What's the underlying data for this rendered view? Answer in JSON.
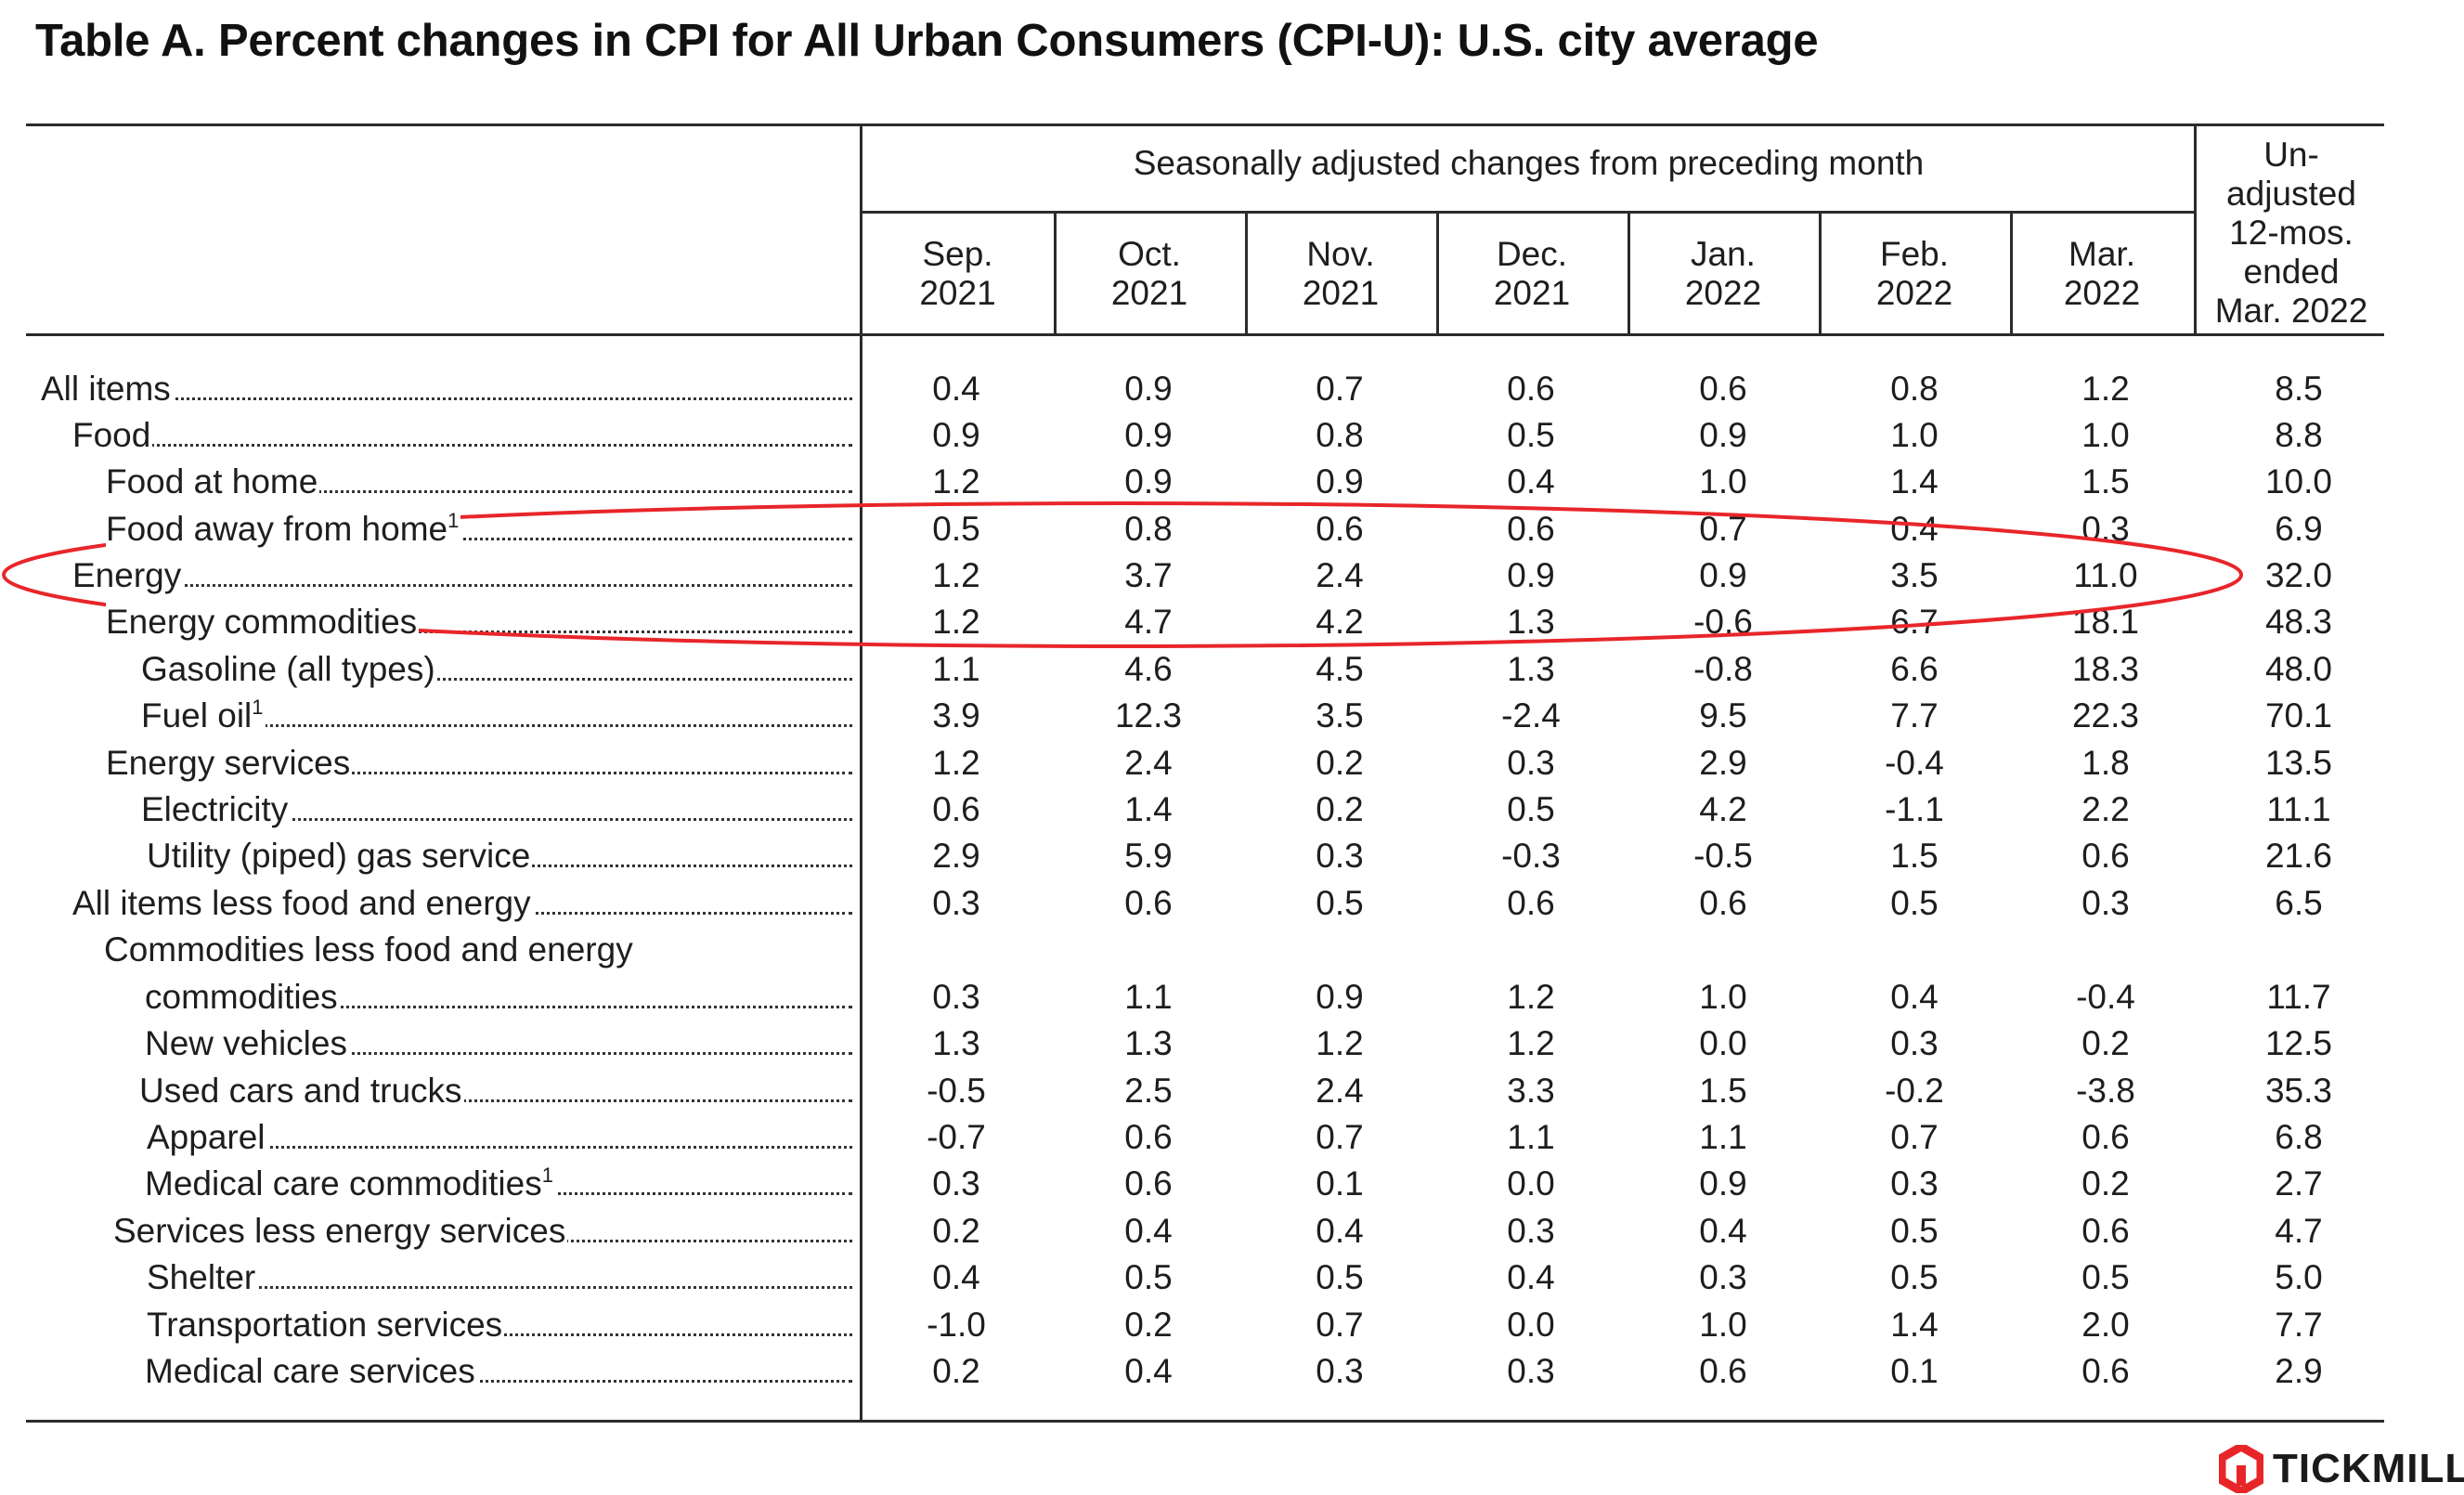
{
  "title": "Table A. Percent changes in CPI for All Urban Consumers (CPI-U): U.S. city average",
  "header": {
    "span_label": "Seasonally adjusted changes from preceding month",
    "months": [
      {
        "line1": "Sep.",
        "line2": "2021"
      },
      {
        "line1": "Oct.",
        "line2": "2021"
      },
      {
        "line1": "Nov.",
        "line2": "2021"
      },
      {
        "line1": "Dec.",
        "line2": "2021"
      },
      {
        "line1": "Jan.",
        "line2": "2022"
      },
      {
        "line1": "Feb.",
        "line2": "2022"
      },
      {
        "line1": "Mar.",
        "line2": "2022"
      }
    ],
    "unadjusted": [
      "Un-",
      "adjusted",
      "12-mos.",
      "ended",
      "Mar. 2022"
    ]
  },
  "rows": [
    {
      "label": "All items",
      "sup": "",
      "values": [
        "0.4",
        "0.9",
        "0.7",
        "0.6",
        "0.6",
        "0.8",
        "1.2",
        "8.5"
      ]
    },
    {
      "label": "Food",
      "sup": "",
      "values": [
        "0.9",
        "0.9",
        "0.8",
        "0.5",
        "0.9",
        "1.0",
        "1.0",
        "8.8"
      ]
    },
    {
      "label": "Food at home",
      "sup": "",
      "values": [
        "1.2",
        "0.9",
        "0.9",
        "0.4",
        "1.0",
        "1.4",
        "1.5",
        "10.0"
      ]
    },
    {
      "label": "Food away from home",
      "sup": "1",
      "values": [
        "0.5",
        "0.8",
        "0.6",
        "0.6",
        "0.7",
        "0.4",
        "0.3",
        "6.9"
      ]
    },
    {
      "label": "Energy",
      "sup": "",
      "values": [
        "1.2",
        "3.7",
        "2.4",
        "0.9",
        "0.9",
        "3.5",
        "11.0",
        "32.0"
      ]
    },
    {
      "label": "Energy commodities",
      "sup": "",
      "values": [
        "1.2",
        "4.7",
        "4.2",
        "1.3",
        "-0.6",
        "6.7",
        "18.1",
        "48.3"
      ]
    },
    {
      "label": "Gasoline (all types)",
      "sup": "",
      "values": [
        "1.1",
        "4.6",
        "4.5",
        "1.3",
        "-0.8",
        "6.6",
        "18.3",
        "48.0"
      ]
    },
    {
      "label": "Fuel oil",
      "sup": "1",
      "values": [
        "3.9",
        "12.3",
        "3.5",
        "-2.4",
        "9.5",
        "7.7",
        "22.3",
        "70.1"
      ]
    },
    {
      "label": "Energy services",
      "sup": "",
      "values": [
        "1.2",
        "2.4",
        "0.2",
        "0.3",
        "2.9",
        "-0.4",
        "1.8",
        "13.5"
      ]
    },
    {
      "label": "Electricity",
      "sup": "",
      "values": [
        "0.6",
        "1.4",
        "0.2",
        "0.5",
        "4.2",
        "-1.1",
        "2.2",
        "11.1"
      ]
    },
    {
      "label": "Utility (piped) gas service",
      "sup": "",
      "values": [
        "2.9",
        "5.9",
        "0.3",
        "-0.3",
        "-0.5",
        "1.5",
        "0.6",
        "21.6"
      ]
    },
    {
      "label": "All items less food and energy",
      "sup": "",
      "values": [
        "0.3",
        "0.6",
        "0.5",
        "0.6",
        "0.6",
        "0.5",
        "0.3",
        "6.5"
      ]
    },
    {
      "label": "commodities",
      "sup": "",
      "lead": "Commodities less food and energy",
      "values": [
        "0.3",
        "1.1",
        "0.9",
        "1.2",
        "1.0",
        "0.4",
        "-0.4",
        "11.7"
      ]
    },
    {
      "label": "New vehicles",
      "sup": "",
      "values": [
        "1.3",
        "1.3",
        "1.2",
        "1.2",
        "0.0",
        "0.3",
        "0.2",
        "12.5"
      ]
    },
    {
      "label": "Used cars and trucks",
      "sup": "",
      "values": [
        "-0.5",
        "2.5",
        "2.4",
        "3.3",
        "1.5",
        "-0.2",
        "-3.8",
        "35.3"
      ]
    },
    {
      "label": "Apparel",
      "sup": "",
      "values": [
        "-0.7",
        "0.6",
        "0.7",
        "1.1",
        "1.1",
        "0.7",
        "0.6",
        "6.8"
      ]
    },
    {
      "label": "Medical care commodities",
      "sup": "1",
      "values": [
        "0.3",
        "0.6",
        "0.1",
        "0.0",
        "0.9",
        "0.3",
        "0.2",
        "2.7"
      ]
    },
    {
      "label": "Services less energy services",
      "sup": "",
      "values": [
        "0.2",
        "0.4",
        "0.4",
        "0.3",
        "0.4",
        "0.5",
        "0.6",
        "4.7"
      ]
    },
    {
      "label": "Shelter",
      "sup": "",
      "values": [
        "0.4",
        "0.5",
        "0.5",
        "0.4",
        "0.3",
        "0.5",
        "0.5",
        "5.0"
      ]
    },
    {
      "label": "Transportation services",
      "sup": "",
      "values": [
        "-1.0",
        "0.2",
        "0.7",
        "0.0",
        "1.0",
        "1.4",
        "2.0",
        "7.7"
      ]
    },
    {
      "label": "Medical care services",
      "sup": "",
      "values": [
        "0.2",
        "0.4",
        "0.3",
        "0.3",
        "0.6",
        "0.1",
        "0.6",
        "2.9"
      ]
    }
  ],
  "annotation": {
    "color": "#e8262a"
  },
  "logo": {
    "text": "TICKMILL",
    "color": "#e8262a"
  }
}
